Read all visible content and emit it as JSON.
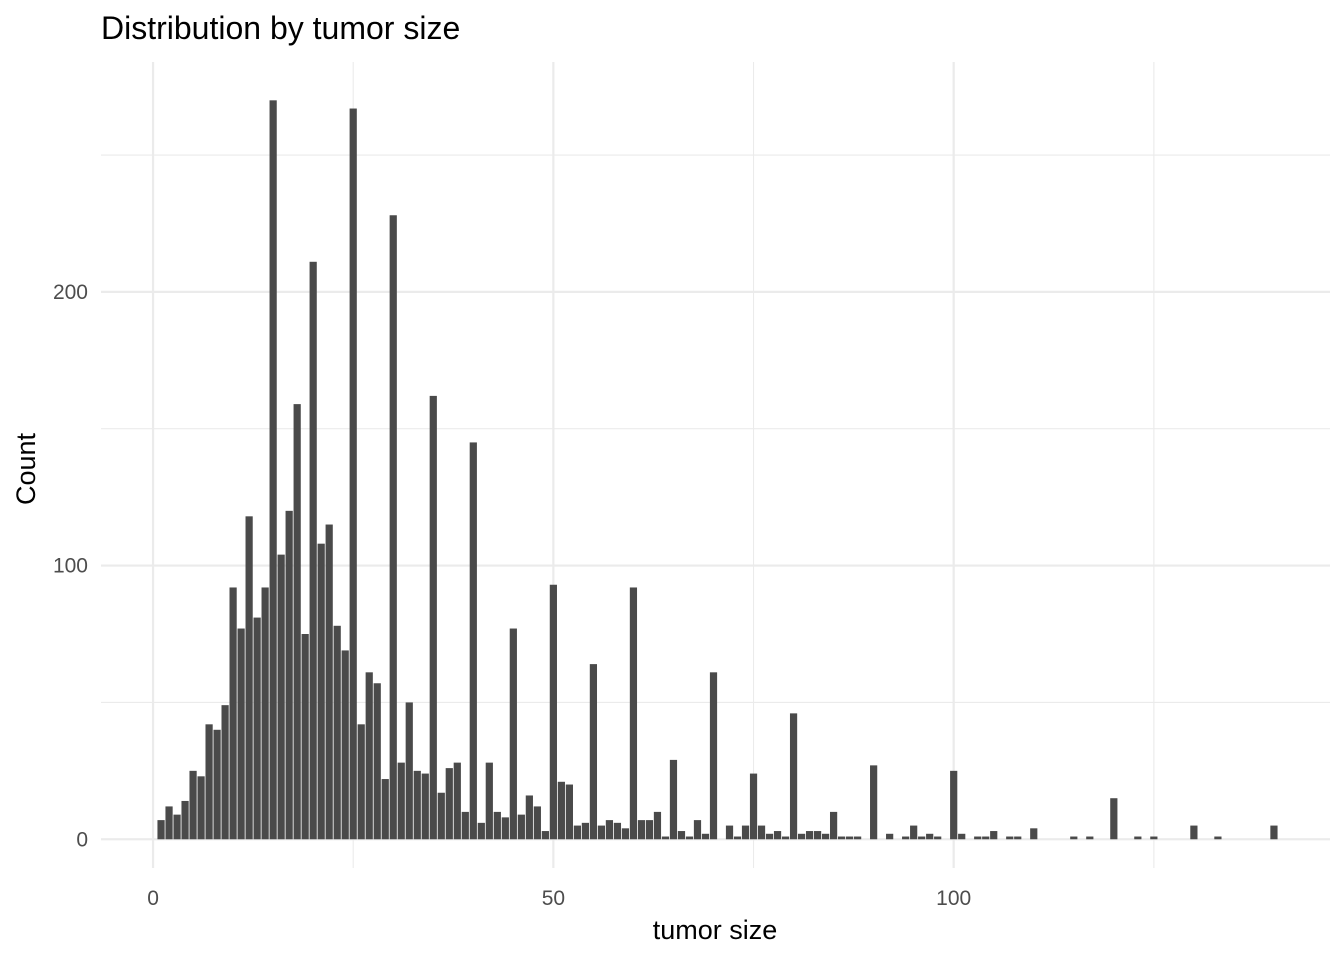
{
  "chart_data": {
    "type": "bar",
    "title": "Distribution by tumor size",
    "xlabel": "tumor size",
    "ylabel": "Count",
    "xlim": [
      -6.5,
      147
    ],
    "ylim": [
      -10.5,
      284
    ],
    "x_ticks": [
      0,
      50,
      100
    ],
    "y_ticks": [
      0,
      100,
      200
    ],
    "x_minor": [
      25,
      75,
      125
    ],
    "y_minor": [
      50,
      150,
      250
    ],
    "grid": true,
    "legend": "none",
    "bar_color": "#4a4a4a",
    "background": "#ffffff",
    "x": [
      1,
      2,
      3,
      4,
      5,
      6,
      7,
      8,
      9,
      10,
      11,
      12,
      13,
      14,
      15,
      16,
      17,
      18,
      19,
      20,
      21,
      22,
      23,
      24,
      25,
      26,
      27,
      28,
      29,
      30,
      31,
      32,
      33,
      34,
      35,
      36,
      37,
      38,
      39,
      40,
      41,
      42,
      43,
      44,
      45,
      46,
      47,
      48,
      49,
      50,
      51,
      52,
      53,
      54,
      55,
      56,
      57,
      58,
      59,
      60,
      61,
      62,
      63,
      64,
      65,
      66,
      67,
      68,
      69,
      70,
      72,
      73,
      74,
      75,
      76,
      77,
      78,
      79,
      80,
      81,
      82,
      83,
      84,
      85,
      86,
      87,
      88,
      90,
      92,
      94,
      95,
      96,
      97,
      98,
      100,
      101,
      103,
      104,
      105,
      107,
      108,
      110,
      115,
      117,
      120,
      123,
      125,
      130,
      133,
      140
    ],
    "values": [
      7,
      12,
      9,
      14,
      25,
      23,
      42,
      40,
      49,
      92,
      77,
      118,
      81,
      92,
      270,
      104,
      120,
      159,
      75,
      211,
      108,
      115,
      78,
      69,
      267,
      42,
      61,
      57,
      22,
      228,
      28,
      50,
      25,
      24,
      162,
      17,
      26,
      28,
      10,
      145,
      6,
      28,
      10,
      8,
      77,
      9,
      16,
      12,
      3,
      93,
      21,
      20,
      5,
      6,
      64,
      5,
      7,
      6,
      4,
      92,
      7,
      7,
      10,
      1,
      29,
      3,
      1,
      7,
      2,
      61,
      5,
      1,
      5,
      24,
      5,
      2,
      3,
      1,
      46,
      2,
      3,
      3,
      2,
      10,
      1,
      1,
      1,
      27,
      2,
      1,
      5,
      1,
      2,
      1,
      25,
      2,
      1,
      1,
      3,
      1,
      1,
      4,
      1,
      1,
      15,
      1,
      1,
      5,
      1,
      5
    ]
  }
}
